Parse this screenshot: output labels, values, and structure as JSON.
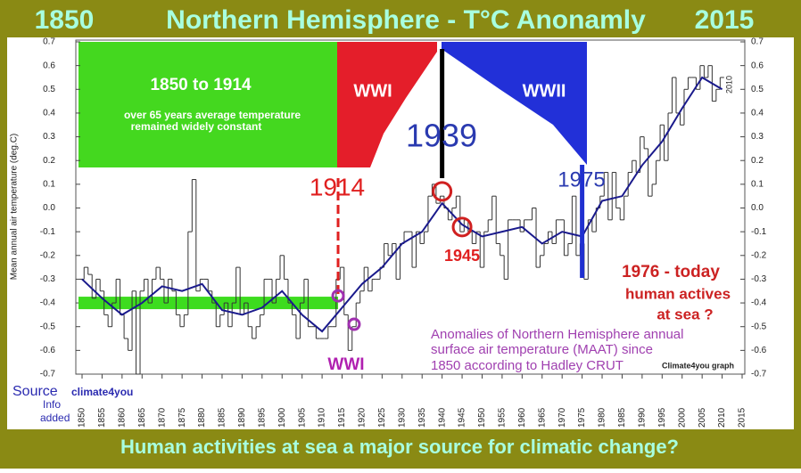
{
  "chart_data": {
    "type": "step",
    "title_left": "1850",
    "title": "Northern Hemisphere - T°C Anonamly",
    "title_right": "2015",
    "caption": "Human activities at sea a major source for climatic change?",
    "y_label": "Mean annual air temperature (deg.C)",
    "xlim": [
      1850,
      2015
    ],
    "xticks": [
      1850,
      1855,
      1860,
      1865,
      1870,
      1875,
      1880,
      1885,
      1890,
      1895,
      1900,
      1905,
      1910,
      1915,
      1920,
      1925,
      1930,
      1935,
      1940,
      1945,
      1950,
      1955,
      1960,
      1965,
      1970,
      1975,
      1980,
      1985,
      1990,
      1995,
      2000,
      2005,
      2010,
      2015
    ],
    "ylim": [
      -0.7,
      0.7
    ],
    "yticks": [
      0.7,
      0.6,
      0.5,
      0.4,
      0.3,
      0.2,
      0.1,
      {
        "value": 0,
        "label": "0.0"
      },
      -0.1,
      -0.2,
      -0.3,
      -0.4,
      -0.5,
      -0.6,
      -0.7
    ],
    "series": [
      {
        "name": "annual",
        "color": "#333333",
        "x": [
          1850,
          1851,
          1852,
          1853,
          1854,
          1855,
          1856,
          1857,
          1858,
          1859,
          1860,
          1861,
          1862,
          1863,
          1864,
          1865,
          1866,
          1867,
          1868,
          1869,
          1870,
          1871,
          1872,
          1873,
          1874,
          1875,
          1876,
          1877,
          1878,
          1879,
          1880,
          1881,
          1882,
          1883,
          1884,
          1885,
          1886,
          1887,
          1888,
          1889,
          1890,
          1891,
          1892,
          1893,
          1894,
          1895,
          1896,
          1897,
          1898,
          1899,
          1900,
          1901,
          1902,
          1903,
          1904,
          1905,
          1906,
          1907,
          1908,
          1909,
          1910,
          1911,
          1912,
          1913,
          1914,
          1915,
          1916,
          1917,
          1918,
          1919,
          1920,
          1921,
          1922,
          1923,
          1924,
          1925,
          1926,
          1927,
          1928,
          1929,
          1930,
          1931,
          1932,
          1933,
          1934,
          1935,
          1936,
          1937,
          1938,
          1939,
          1940,
          1941,
          1942,
          1943,
          1944,
          1945,
          1946,
          1947,
          1948,
          1949,
          1950,
          1951,
          1952,
          1953,
          1954,
          1955,
          1956,
          1957,
          1958,
          1959,
          1960,
          1961,
          1962,
          1963,
          1964,
          1965,
          1966,
          1967,
          1968,
          1969,
          1970,
          1971,
          1972,
          1973,
          1974,
          1975,
          1976,
          1977,
          1978,
          1979,
          1980,
          1981,
          1982,
          1983,
          1984,
          1985,
          1986,
          1987,
          1988,
          1989,
          1990,
          1991,
          1992,
          1993,
          1994,
          1995,
          1996,
          1997,
          1998,
          1999,
          2000,
          2001,
          2002,
          2003,
          2004,
          2005,
          2006,
          2007,
          2008,
          2009,
          2010
        ],
        "values": [
          -0.3,
          -0.25,
          -0.28,
          -0.38,
          -0.3,
          -0.35,
          -0.45,
          -0.5,
          -0.4,
          -0.3,
          -0.45,
          -0.55,
          -0.6,
          -0.35,
          -0.7,
          -0.35,
          -0.3,
          -0.4,
          -0.3,
          -0.25,
          -0.3,
          -0.4,
          -0.3,
          -0.35,
          -0.45,
          -0.5,
          -0.45,
          -0.1,
          0.12,
          -0.35,
          -0.3,
          -0.3,
          -0.35,
          -0.4,
          -0.5,
          -0.45,
          -0.4,
          -0.5,
          -0.4,
          -0.25,
          -0.45,
          -0.4,
          -0.5,
          -0.55,
          -0.5,
          -0.45,
          -0.3,
          -0.3,
          -0.4,
          -0.3,
          -0.2,
          -0.3,
          -0.4,
          -0.45,
          -0.55,
          -0.4,
          -0.3,
          -0.5,
          -0.5,
          -0.55,
          -0.55,
          -0.55,
          -0.5,
          -0.5,
          -0.3,
          -0.25,
          -0.45,
          -0.6,
          -0.5,
          -0.4,
          -0.35,
          -0.25,
          -0.35,
          -0.3,
          -0.3,
          -0.25,
          -0.15,
          -0.2,
          -0.15,
          -0.3,
          -0.15,
          -0.1,
          -0.1,
          -0.25,
          -0.1,
          -0.15,
          -0.1,
          0.05,
          0.1,
          0.02,
          0.05,
          0.0,
          -0.05,
          0.0,
          0.05,
          -0.1,
          -0.05,
          -0.1,
          -0.15,
          -0.1,
          -0.25,
          -0.1,
          -0.05,
          0.05,
          -0.15,
          -0.2,
          -0.3,
          -0.05,
          -0.05,
          -0.05,
          -0.1,
          -0.05,
          -0.05,
          0.0,
          -0.25,
          -0.2,
          -0.15,
          -0.1,
          -0.15,
          -0.05,
          -0.05,
          -0.2,
          -0.15,
          0.05,
          -0.2,
          -0.15,
          -0.3,
          -0.05,
          -0.1,
          0.0,
          0.05,
          0.15,
          -0.05,
          0.15,
          0.0,
          -0.05,
          0.05,
          0.15,
          0.2,
          0.15,
          0.3,
          0.25,
          0.05,
          0.1,
          0.2,
          0.35,
          0.2,
          0.4,
          0.55,
          0.4,
          0.35,
          0.5,
          0.55,
          0.55,
          0.5,
          0.6,
          0.55,
          0.6,
          0.45,
          0.5,
          0.55
        ]
      },
      {
        "name": "smoothed",
        "color": "#1a1a8c",
        "x": [
          1850,
          1855,
          1860,
          1865,
          1870,
          1875,
          1880,
          1885,
          1890,
          1895,
          1900,
          1905,
          1910,
          1915,
          1920,
          1925,
          1930,
          1935,
          1940,
          1945,
          1950,
          1955,
          1960,
          1965,
          1970,
          1975,
          1980,
          1985,
          1990,
          1995,
          2000,
          2005,
          2010
        ],
        "values": [
          -0.3,
          -0.38,
          -0.45,
          -0.4,
          -0.33,
          -0.35,
          -0.32,
          -0.43,
          -0.45,
          -0.42,
          -0.35,
          -0.45,
          -0.52,
          -0.42,
          -0.32,
          -0.25,
          -0.15,
          -0.1,
          0.02,
          -0.07,
          -0.12,
          -0.1,
          -0.08,
          -0.15,
          -0.1,
          -0.12,
          0.03,
          0.05,
          0.18,
          0.28,
          0.42,
          0.55,
          0.5
        ]
      }
    ],
    "average_band": {
      "from": 1850,
      "to": 1914,
      "value": -0.4,
      "color": "#3ddc1f"
    },
    "event_lines": [
      {
        "year": 1914,
        "color": "#e02020",
        "dashed": true
      },
      {
        "year": 1940,
        "color": "#000000",
        "dashed": false
      },
      {
        "year": 1975,
        "color": "#2030d0",
        "dashed": false
      }
    ],
    "highlights": [
      {
        "x": 1914,
        "y": -0.37,
        "color": "#a030b0"
      },
      {
        "x": 1918,
        "y": -0.49,
        "color": "#a030b0"
      },
      {
        "x": 1940,
        "y": 0.07,
        "color": "#d02020"
      },
      {
        "x": 1945,
        "y": -0.08,
        "color": "#d02020"
      }
    ],
    "annotations": {
      "period": "1850 to 1914",
      "period_note_1": "over 65 years average temperature",
      "period_note_2": "remained widely constant",
      "wwi_top": "WWI",
      "wwii_top": "WWII",
      "year_1939": "1939",
      "year_1914": "1914",
      "year_1975": "1975",
      "year_1945": "1945",
      "wwi_bottom": "WWI",
      "today_1": "1976 - today",
      "today_2": "human actives",
      "today_3": "at sea ?",
      "source_1": "Anomalies of Northern Hemisphere annual",
      "source_2": "surface air temperature (MAAT) since",
      "source_3": "1850 according to Hadley CRUT",
      "credit": "Climate4you graph",
      "end_year": "2010",
      "source_label": "Source",
      "source_name": "climate4you",
      "info_1": "Info",
      "info_2": "added"
    }
  }
}
